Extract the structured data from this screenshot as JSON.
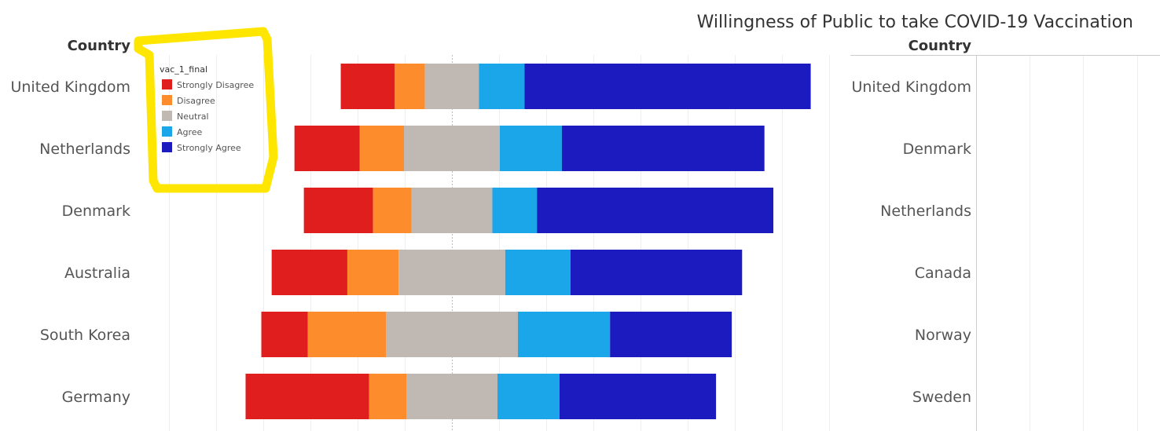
{
  "chart_data": {
    "type": "bar",
    "orientation": "horizontal",
    "stacking": "diverging (centered on Neutral midpoint)",
    "title": "Willingness of Public to take COVID-19 Vaccination",
    "row_header": "Country",
    "units": "percent of respondents (estimated)",
    "categories": [
      "United Kingdom",
      "Netherlands",
      "Denmark",
      "Australia",
      "South Korea",
      "Germany"
    ],
    "legend": {
      "title": "vac_1_final",
      "placement": "top-left"
    },
    "series": [
      {
        "name": "Strongly Disagree",
        "color": "#e01e1e",
        "values": [
          11.5,
          13.9,
          14.7,
          16.1,
          9.9,
          26.3
        ]
      },
      {
        "name": "Disagree",
        "color": "#fd8c2c",
        "values": [
          6.4,
          9.4,
          8.2,
          10.9,
          16.6,
          7.9
        ]
      },
      {
        "name": "Neutral",
        "color": "#c0b8b2",
        "values": [
          11.5,
          20.4,
          17.2,
          22.7,
          28.1,
          19.4
        ]
      },
      {
        "name": "Agree",
        "color": "#1ba6ea",
        "values": [
          9.7,
          13.2,
          9.5,
          13.9,
          19.6,
          13.2
        ]
      },
      {
        "name": "Strongly Agree",
        "color": "#1b1bc0",
        "values": [
          60.9,
          43.1,
          50.3,
          36.5,
          25.9,
          33.3
        ]
      }
    ],
    "grid": true,
    "secondary_panel": {
      "row_header": "Country",
      "categories": [
        "United Kingdom",
        "Denmark",
        "Netherlands",
        "Canada",
        "Norway",
        "Sweden"
      ]
    }
  }
}
